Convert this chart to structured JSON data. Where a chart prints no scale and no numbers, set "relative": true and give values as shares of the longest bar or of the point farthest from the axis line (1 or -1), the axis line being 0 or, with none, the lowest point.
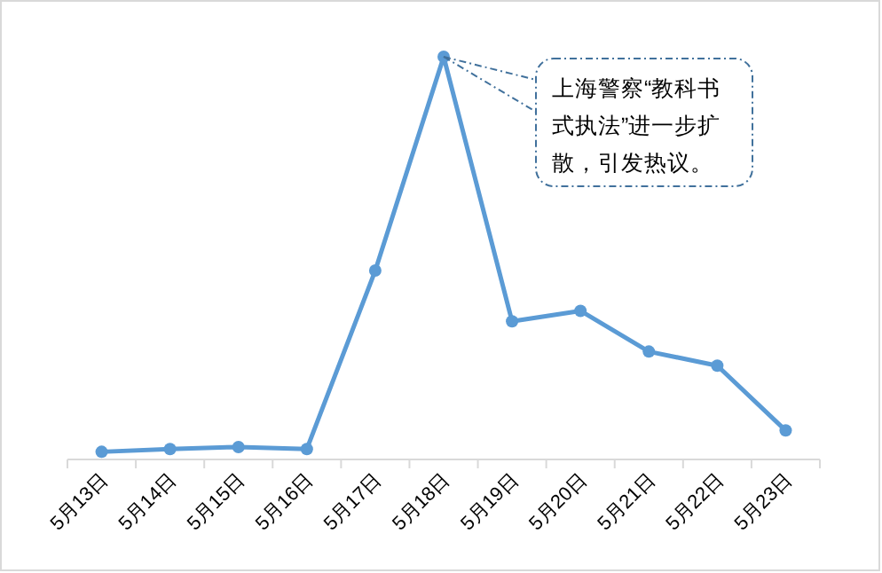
{
  "chart_data": {
    "type": "line",
    "relative": true,
    "categories": [
      "5月13日",
      "5月14日",
      "5月15日",
      "5月16日",
      "5月17日",
      "5月18日",
      "5月19日",
      "5月20日",
      "5月21日",
      "5月22日",
      "5月23日"
    ],
    "series": [
      {
        "color": "#5b9bd5",
        "values": [
          0.019,
          0.026,
          0.031,
          0.026,
          0.469,
          1,
          0.343,
          0.369,
          0.268,
          0.233,
          0.072
        ]
      }
    ],
    "marker": "circle",
    "annotations": [
      {
        "text": "上海警察“教科书式执法”进一步扩散，引发热议。",
        "x": "5月18日",
        "y": 1
      }
    ]
  }
}
